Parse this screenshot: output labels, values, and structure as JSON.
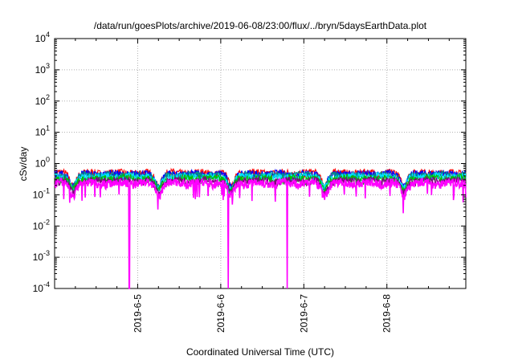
{
  "chart_data": {
    "type": "line",
    "title": "/data/run/goesPlots/archive/2019-06-08/23:00/flux/../bryn/5daysEarthData.plot",
    "xlabel": "Coordinated Universal Time (UTC)",
    "ylabel": "cSv/day",
    "yscale": "log",
    "ylim": [
      0.0001,
      10000
    ],
    "xlim_days": [
      4.0,
      8.95
    ],
    "x_ticks": [
      {
        "day": 5,
        "label": "2019-6-5"
      },
      {
        "day": 6,
        "label": "2019-6-6"
      },
      {
        "day": 7,
        "label": "2019-6-7"
      },
      {
        "day": 8,
        "label": "2019-6-8"
      }
    ],
    "y_ticks": [
      {
        "exp": -4,
        "base": "10",
        "sup": "-4"
      },
      {
        "exp": -3,
        "base": "10",
        "sup": "-3"
      },
      {
        "exp": -2,
        "base": "10",
        "sup": "-2"
      },
      {
        "exp": -1,
        "base": "10",
        "sup": "-1"
      },
      {
        "exp": 0,
        "base": "10",
        "sup": "0"
      },
      {
        "exp": 1,
        "base": "10",
        "sup": "1"
      },
      {
        "exp": 2,
        "base": "10",
        "sup": "2"
      },
      {
        "exp": 3,
        "base": "10",
        "sup": "3"
      },
      {
        "exp": 4,
        "base": "10",
        "sup": "4"
      }
    ],
    "grid": true,
    "series_style": [
      {
        "color": "#ff0000",
        "level": 0.5
      },
      {
        "color": "#0000ff",
        "level": 0.46
      },
      {
        "color": "#008b8b",
        "level": 0.42
      },
      {
        "color": "#00e5ff",
        "level": 0.38
      },
      {
        "color": "#00c000",
        "level": 0.33
      },
      {
        "color": "#800080",
        "level": 0.28
      },
      {
        "color": "#ff00ff",
        "level": 0.24
      }
    ],
    "dips": [
      {
        "day": 4.22,
        "min": 0.035
      },
      {
        "day": 5.25,
        "min": 0.04
      },
      {
        "day": 6.12,
        "min": 0.03
      },
      {
        "day": 7.25,
        "min": 0.035
      },
      {
        "day": 8.2,
        "min": 0.05
      }
    ],
    "spikes": [
      {
        "day": 4.9,
        "min": 0.0001
      },
      {
        "day": 6.09,
        "min": 0.0001
      },
      {
        "day": 6.8,
        "min": 0.0001
      }
    ]
  }
}
